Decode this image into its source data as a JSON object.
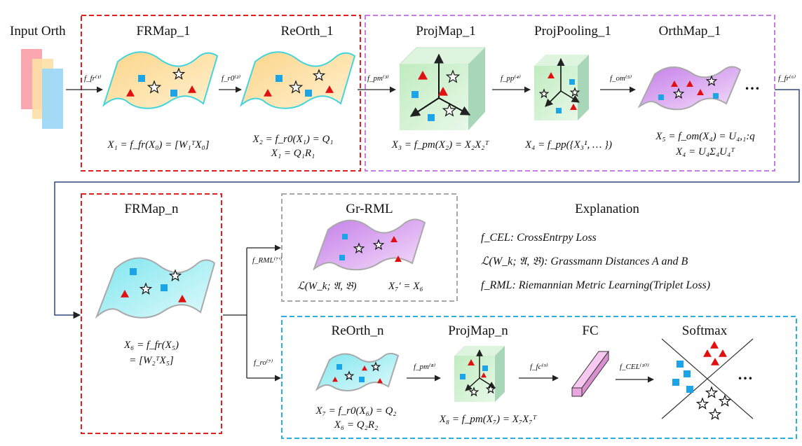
{
  "input_label": "Input Orth",
  "titles": {
    "frmap1": "FRMap_1",
    "reorth1": "ReOrth_1",
    "projmap1": "ProjMap_1",
    "projpool1": "ProjPooling_1",
    "orthmap1": "OrthMap_1",
    "frmapn": "FRMap_n",
    "grrml": "Gr-RML",
    "explanation": "Explanation",
    "reorthn": "ReOrth_n",
    "projmapn": "ProjMap_n",
    "fc": "FC",
    "softmax": "Softmax"
  },
  "equations": {
    "x1": "X₁ = f_fr(X₀) = [W₁ᵀX₀]",
    "x2a": "X₂ = f_r0(X₁) = Q₁",
    "x2b": "X₁ = Q₁R₁",
    "x3": "X₃ = f_pm(X₂) = X₂X₂ᵀ",
    "x4": "X₄ = f_pp({X₃¹, … })",
    "x5a": "X₅ = f_om(X₄) = U₄,₁:q",
    "x5b": "X₄ = U₄Σ₄U₄ᵀ",
    "x6a": "X₆ = f_fr(X₅)",
    "x6b": "= [W₂ᵀX₅]",
    "loss": "ℒ(W_k; 𝔄, 𝔅)",
    "x7p": "X₇′ = X₆",
    "x7a": "X₇ = f_r0(X₆) = Q₂",
    "x7b": "X₆ = Q₂R₂",
    "x8": "X₈ = f_pm(X₇) = X₇X₇ᵀ"
  },
  "functions": {
    "f1": "f_fr⁽¹⁾",
    "f2": "f_r0⁽²⁾",
    "f3": "f_pm⁽³⁾",
    "f4": "f_pp⁽⁴⁾",
    "f5": "f_om⁽⁵⁾",
    "f6": "f_fr⁽⁶⁾",
    "f7p": "f_RML⁽⁷′⁾",
    "f7": "f_ro⁽⁷⁾",
    "f8": "f_pm⁽⁸⁾",
    "f9": "f_fc⁽⁹⁾",
    "f10": "f_CEL⁽¹⁰⁾"
  },
  "explanation": {
    "cel": "f_CEL: CrossEntrpy Loss",
    "grass": "ℒ(W_k; 𝔄, 𝔅): Grassmann Distances A and B",
    "rml": "f_RML: Riemannian Metric Learning(Triplet Loss)"
  },
  "ellipsis": "…",
  "colors": {
    "red_border": "#e0201e",
    "purple_border": "#c77ce6",
    "gray_border": "#a8a8a8",
    "blue_border": "#2ab0e0",
    "orange_fill": "#fde2a6",
    "purple_fill": "#d49af0",
    "cyan_fill": "#aef0f4",
    "green_fill": "#ccf0cc",
    "red_marker": "#e01010",
    "blue_marker": "#1ba5e8",
    "arrow": "#2b4a7a"
  }
}
